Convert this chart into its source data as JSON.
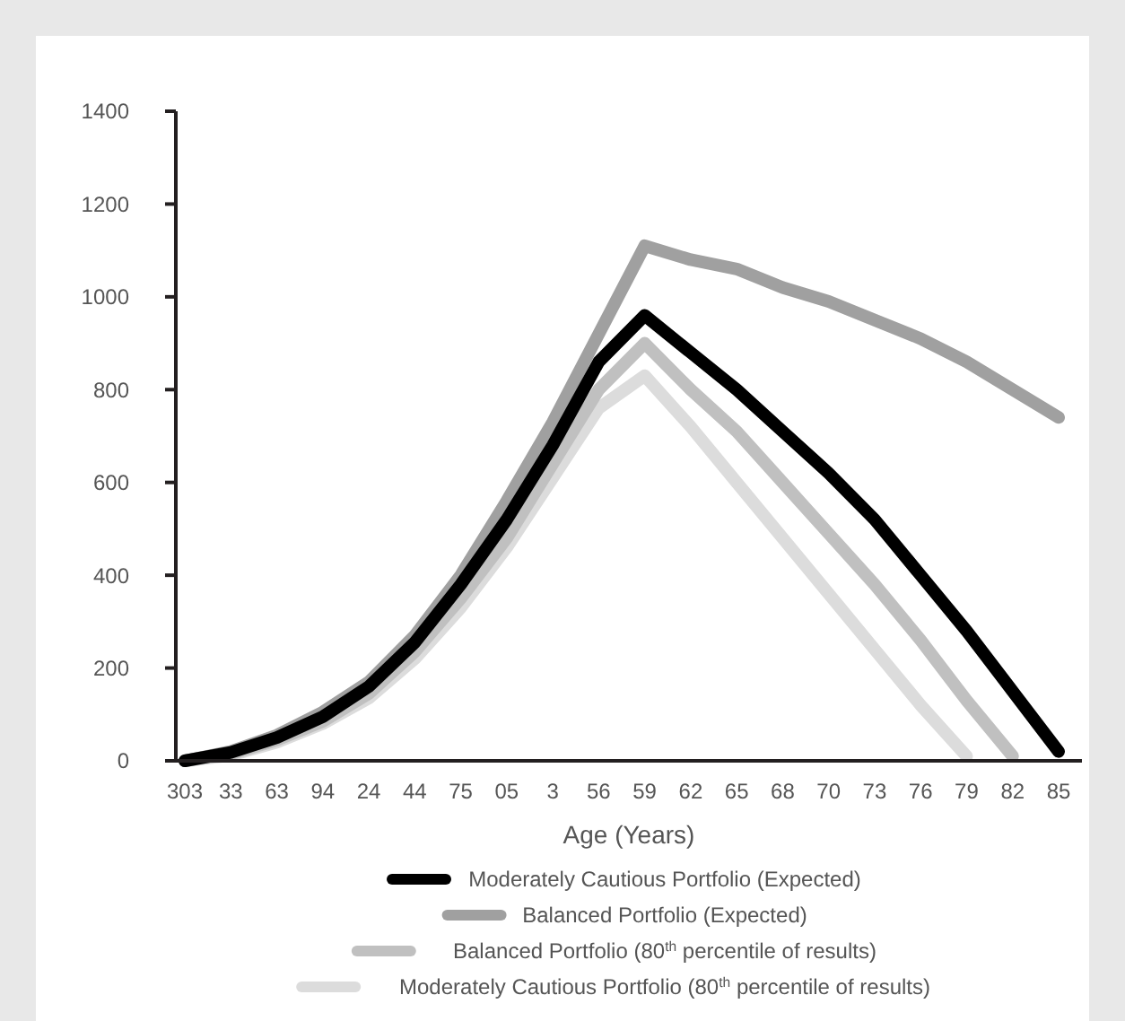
{
  "chart_data": {
    "type": "line",
    "xlabel": "Age (Years)",
    "categories": [
      "303",
      "33",
      "63",
      "94",
      "24",
      "44",
      "75",
      "05",
      "3",
      "56",
      "59",
      "62",
      "65",
      "68",
      "70",
      "73",
      "76",
      "79",
      "82",
      "85"
    ],
    "ylim": [
      0,
      1400
    ],
    "yticks": [
      0,
      200,
      400,
      600,
      800,
      1000,
      1200,
      1400
    ],
    "grid": false,
    "legend": "bottom",
    "marker": "none",
    "line_style": "solid",
    "series": [
      {
        "name": "Moderately Cautious Portfolio (Expected)",
        "color": "#000000",
        "values": [
          0,
          18,
          50,
          95,
          160,
          255,
          380,
          520,
          680,
          860,
          960,
          880,
          800,
          710,
          620,
          520,
          400,
          280,
          150,
          20
        ]
      },
      {
        "name": "Balanced Portfolio (Expected)",
        "color": "#a0a0a0",
        "values": [
          0,
          20,
          55,
          105,
          170,
          270,
          400,
          560,
          730,
          920,
          1110,
          1080,
          1060,
          1020,
          990,
          950,
          910,
          860,
          800,
          740
        ]
      },
      {
        "name": "Balanced Portfolio (80$^{th}$ percentile of results)",
        "color": "#c0c0c0",
        "values": [
          0,
          15,
          45,
          85,
          145,
          235,
          350,
          480,
          640,
          800,
          900,
          800,
          710,
          600,
          490,
          380,
          260,
          130,
          10,
          null
        ]
      },
      {
        "name": "Moderately Cautious Portfolio (80$^{th}$ percentile of results)",
        "color": "#dcdcdc",
        "values": [
          0,
          12,
          40,
          80,
          135,
          220,
          330,
          460,
          610,
          760,
          830,
          720,
          600,
          480,
          360,
          240,
          120,
          10,
          null,
          null
        ]
      }
    ]
  }
}
